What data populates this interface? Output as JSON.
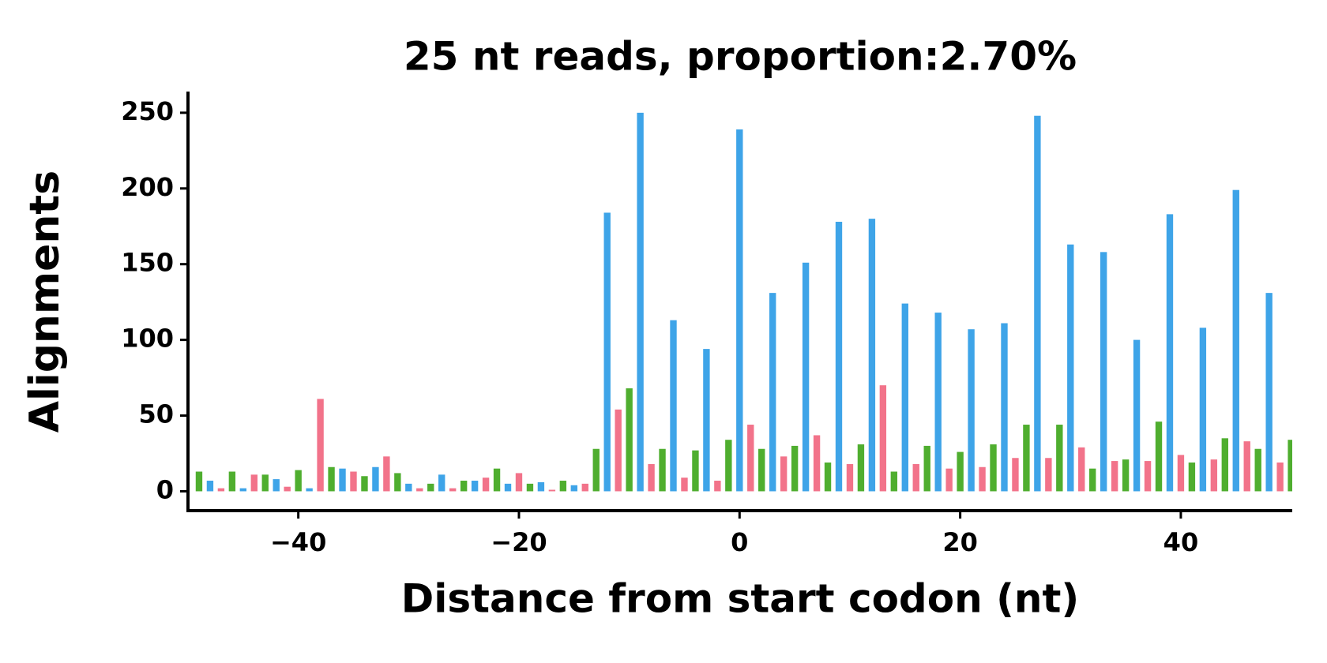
{
  "chart_data": {
    "type": "bar",
    "title": "25 nt reads, proportion:2.70%",
    "xlabel": "Distance from start codon (nt)",
    "ylabel": "Alignments",
    "xlim": [
      -50,
      50.1
    ],
    "ylim": [
      -12.8,
      264
    ],
    "xticks": [
      {
        "value": -40,
        "label": "−40"
      },
      {
        "value": -20,
        "label": "−20"
      },
      0,
      20,
      40
    ],
    "yticks": [
      0,
      50,
      100,
      150,
      200,
      250
    ],
    "series": [
      {
        "color": "#3ea4e8",
        "x": [
          -48,
          -45,
          -42,
          -39,
          -36,
          -33,
          -30,
          -27,
          -24,
          -21,
          -18,
          -15,
          -12,
          -9,
          -6,
          -3,
          0,
          3,
          6,
          9,
          12,
          15,
          18,
          21,
          24,
          27,
          30,
          33,
          36,
          39,
          42,
          45,
          48
        ],
        "values": [
          7,
          2,
          8,
          2,
          15,
          16,
          5,
          11,
          7,
          5,
          6,
          4,
          184,
          250,
          113,
          94,
          239,
          131,
          151,
          178,
          180,
          124,
          118,
          107,
          111,
          248,
          163,
          158,
          100,
          183,
          108,
          199,
          131
        ]
      },
      {
        "color": "#4fae2f",
        "x": [
          -49,
          -46,
          -43,
          -40,
          -37,
          -34,
          -31,
          -28,
          -25,
          -22,
          -19,
          -16,
          -13,
          -10,
          -7,
          -4,
          -1,
          2,
          5,
          8,
          11,
          14,
          17,
          20,
          23,
          26,
          29,
          32,
          35,
          38,
          41,
          44,
          47,
          50
        ],
        "values": [
          13,
          13,
          11,
          14,
          16,
          10,
          12,
          5,
          7,
          15,
          5,
          7,
          28,
          68,
          28,
          27,
          34,
          28,
          30,
          19,
          31,
          13,
          30,
          26,
          31,
          44,
          44,
          15,
          21,
          46,
          19,
          35,
          28,
          34
        ]
      },
      {
        "color": "#f2738a",
        "x": [
          -47,
          -44,
          -41,
          -38,
          -35,
          -32,
          -29,
          -26,
          -23,
          -20,
          -17,
          -14,
          -11,
          -8,
          -5,
          -2,
          1,
          4,
          7,
          10,
          13,
          16,
          19,
          22,
          25,
          28,
          31,
          34,
          37,
          40,
          43,
          46,
          49
        ],
        "values": [
          2,
          11,
          3,
          61,
          13,
          23,
          2,
          2,
          9,
          12,
          1,
          5,
          54,
          18,
          9,
          7,
          44,
          23,
          37,
          18,
          70,
          18,
          15,
          16,
          22,
          22,
          29,
          20,
          20,
          24,
          21,
          33,
          19
        ]
      }
    ]
  }
}
